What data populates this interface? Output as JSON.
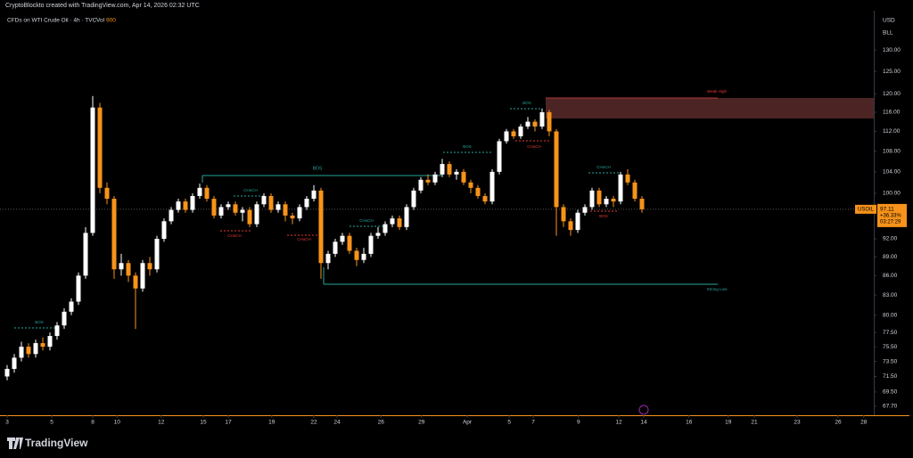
{
  "header": "CryptoBlockto created with TradingView.com, Apr 14, 2026 02:32 UTC",
  "logo": "TradingView",
  "chart_data": {
    "type": "candlestick",
    "symbol": "CFDs on WTI Crude Oil · 4h · TVC",
    "volume_label": "Vol",
    "volume_value": "900",
    "currency": "USD",
    "unit": "BLL",
    "ticker": "USOIL",
    "change": "+36.33%",
    "countdown": "03:27:29",
    "up_color": "#ffffff",
    "down_color": "#f7931a",
    "log_scale": true,
    "grid": false,
    "open": [
      71.5,
      72.5,
      74.0,
      75.5,
      74.5,
      76.0,
      75.5,
      77.0,
      78.5,
      80.5,
      82.0,
      86.0,
      93.0,
      117.0,
      101.0,
      99.0,
      87.0,
      88.0,
      86.0,
      84.0,
      88.0,
      87.0,
      92.0,
      95.0,
      97.0,
      98.5,
      97.0,
      99.5,
      101.0,
      99.0,
      96.0,
      97.5,
      98.0,
      96.5,
      97.0,
      94.5,
      98.0,
      99.5,
      97.0,
      98.0,
      96.0,
      95.5,
      97.5,
      99.0,
      100.5,
      88.0,
      89.5,
      91.5,
      92.5,
      90.0,
      88.5,
      89.5,
      92.5,
      93.0,
      94.5,
      95.5,
      94.0,
      97.5,
      100.5,
      102.5,
      102.0,
      103.5,
      105.5,
      103.5,
      104.0,
      102.0,
      101.0,
      99.5,
      98.5,
      104.0,
      110.0,
      112.0,
      111.0,
      113.0,
      114.0,
      113.0,
      116.0,
      112.0,
      97.5,
      95.0,
      93.5,
      96.5,
      97.5,
      100.5,
      98.0,
      99.0,
      98.5,
      103.5,
      102.0,
      99.0
    ],
    "high": [
      73.0,
      74.5,
      76.2,
      76.0,
      76.5,
      76.8,
      77.5,
      79.0,
      81.0,
      82.5,
      86.5,
      94.0,
      119.5,
      118.0,
      102.0,
      99.5,
      89.5,
      88.5,
      86.5,
      88.5,
      89.0,
      92.5,
      95.5,
      97.5,
      99.0,
      99.0,
      100.0,
      101.8,
      101.5,
      99.5,
      98.0,
      98.5,
      98.5,
      97.5,
      97.5,
      98.5,
      100.0,
      100.0,
      98.5,
      98.5,
      96.5,
      98.0,
      99.5,
      101.5,
      101.0,
      90.0,
      92.0,
      93.0,
      93.0,
      90.5,
      90.5,
      93.0,
      94.0,
      95.0,
      96.0,
      96.0,
      98.0,
      101.0,
      103.0,
      103.5,
      104.0,
      106.5,
      106.0,
      104.5,
      104.5,
      102.5,
      101.5,
      100.0,
      104.5,
      110.5,
      112.5,
      112.5,
      113.5,
      115.0,
      114.5,
      116.8,
      116.5,
      112.5,
      98.0,
      95.5,
      97.0,
      98.0,
      101.0,
      101.0,
      99.5,
      99.5,
      104.0,
      104.5,
      102.5,
      99.5
    ],
    "low": [
      71.0,
      72.0,
      73.5,
      74.0,
      74.0,
      75.0,
      75.0,
      76.5,
      78.0,
      80.0,
      81.5,
      85.5,
      92.5,
      100.0,
      98.0,
      85.5,
      86.0,
      85.0,
      78.0,
      83.5,
      86.0,
      86.5,
      91.5,
      94.5,
      96.5,
      96.5,
      96.5,
      99.0,
      98.5,
      95.5,
      95.5,
      97.0,
      96.0,
      95.0,
      94.0,
      94.0,
      97.5,
      96.5,
      96.5,
      95.0,
      94.5,
      95.0,
      97.0,
      98.5,
      85.5,
      87.0,
      89.0,
      91.0,
      89.5,
      87.5,
      88.0,
      89.0,
      92.0,
      92.5,
      94.0,
      93.5,
      93.5,
      97.0,
      100.0,
      101.5,
      101.5,
      103.0,
      103.0,
      102.5,
      101.5,
      100.0,
      99.0,
      98.0,
      98.0,
      103.5,
      109.5,
      110.5,
      110.5,
      112.5,
      112.0,
      112.5,
      111.0,
      92.5,
      94.0,
      92.5,
      93.0,
      96.0,
      97.0,
      97.5,
      97.5,
      97.5,
      98.0,
      101.5,
      98.5,
      96.5
    ],
    "close": [
      72.5,
      74.0,
      75.5,
      74.5,
      76.0,
      75.5,
      77.0,
      78.5,
      80.5,
      82.0,
      86.0,
      93.0,
      117.0,
      101.0,
      99.0,
      87.0,
      88.0,
      86.0,
      84.0,
      88.0,
      87.0,
      92.0,
      95.0,
      97.0,
      98.5,
      97.0,
      99.5,
      101.0,
      99.0,
      96.0,
      97.5,
      98.0,
      96.5,
      97.0,
      94.5,
      98.0,
      99.5,
      97.0,
      98.0,
      96.0,
      95.5,
      97.5,
      99.0,
      100.5,
      88.0,
      89.5,
      91.5,
      92.5,
      90.0,
      88.5,
      89.5,
      92.5,
      93.0,
      94.5,
      95.5,
      94.0,
      97.5,
      100.5,
      102.5,
      102.0,
      103.5,
      105.5,
      103.5,
      104.0,
      102.0,
      101.0,
      99.5,
      98.5,
      104.0,
      110.0,
      112.0,
      111.0,
      113.0,
      114.0,
      113.0,
      116.0,
      112.0,
      97.5,
      95.0,
      93.5,
      96.5,
      97.5,
      100.5,
      98.0,
      99.0,
      98.5,
      103.5,
      102.0,
      99.0,
      97.11
    ],
    "ylim": [
      66.6,
      139.7
    ],
    "yticks": [
      {
        "value": 130,
        "label": "130.00"
      },
      {
        "value": 125,
        "label": "125.00"
      },
      {
        "value": 120,
        "label": "120.00"
      },
      {
        "value": 116,
        "label": "116.00"
      },
      {
        "value": 112,
        "label": "112.00"
      },
      {
        "value": 108,
        "label": "108.00"
      },
      {
        "value": 104,
        "label": "104.00"
      },
      {
        "value": 100,
        "label": "100.00"
      },
      {
        "value": 92,
        "label": "92.00"
      },
      {
        "value": 89,
        "label": "89.00"
      },
      {
        "value": 86,
        "label": "86.00"
      },
      {
        "value": 83,
        "label": "83.00"
      },
      {
        "value": 80,
        "label": "80.00"
      },
      {
        "value": 77.5,
        "label": "77.50"
      },
      {
        "value": 75.5,
        "label": "75.50"
      },
      {
        "value": 73.5,
        "label": "73.50"
      },
      {
        "value": 71.5,
        "label": "71.50"
      },
      {
        "value": 69.5,
        "label": "69.50"
      },
      {
        "value": 67.7,
        "label": "67.70"
      }
    ],
    "xlim": [
      -1,
      121.5
    ],
    "xticks": [
      {
        "value": 0,
        "label": "3"
      },
      {
        "value": 6.25,
        "label": "5"
      },
      {
        "value": 12,
        "label": "8"
      },
      {
        "value": 15.4,
        "label": "10"
      },
      {
        "value": 21.6,
        "label": "12"
      },
      {
        "value": 27.5,
        "label": "15"
      },
      {
        "value": 31,
        "label": "17"
      },
      {
        "value": 37.1,
        "label": "19"
      },
      {
        "value": 43,
        "label": "22"
      },
      {
        "value": 46.25,
        "label": "24"
      },
      {
        "value": 52.4,
        "label": "26"
      },
      {
        "value": 58.1,
        "label": "29"
      },
      {
        "value": 64.5,
        "label": "Apr"
      },
      {
        "value": 70.4,
        "label": "5"
      },
      {
        "value": 73.75,
        "label": "7"
      },
      {
        "value": 80.1,
        "label": "9"
      },
      {
        "value": 85.75,
        "label": "12"
      },
      {
        "value": 89.25,
        "label": "14"
      },
      {
        "value": 95.6,
        "label": "16"
      },
      {
        "value": 101.1,
        "label": "19"
      },
      {
        "value": 104.75,
        "label": "21"
      },
      {
        "value": 110.75,
        "label": "23"
      },
      {
        "value": 116.5,
        "label": "26"
      },
      {
        "value": 120.1,
        "label": "28"
      }
    ],
    "annotations": [
      "BOS",
      "BOS",
      "CHoCH",
      "CHoCH",
      "CHoCH",
      "CHoCH",
      "BOS",
      "BOS",
      "CHoCH",
      "CHoCH",
      "BOS",
      "Weak High",
      "Strong Low"
    ]
  }
}
